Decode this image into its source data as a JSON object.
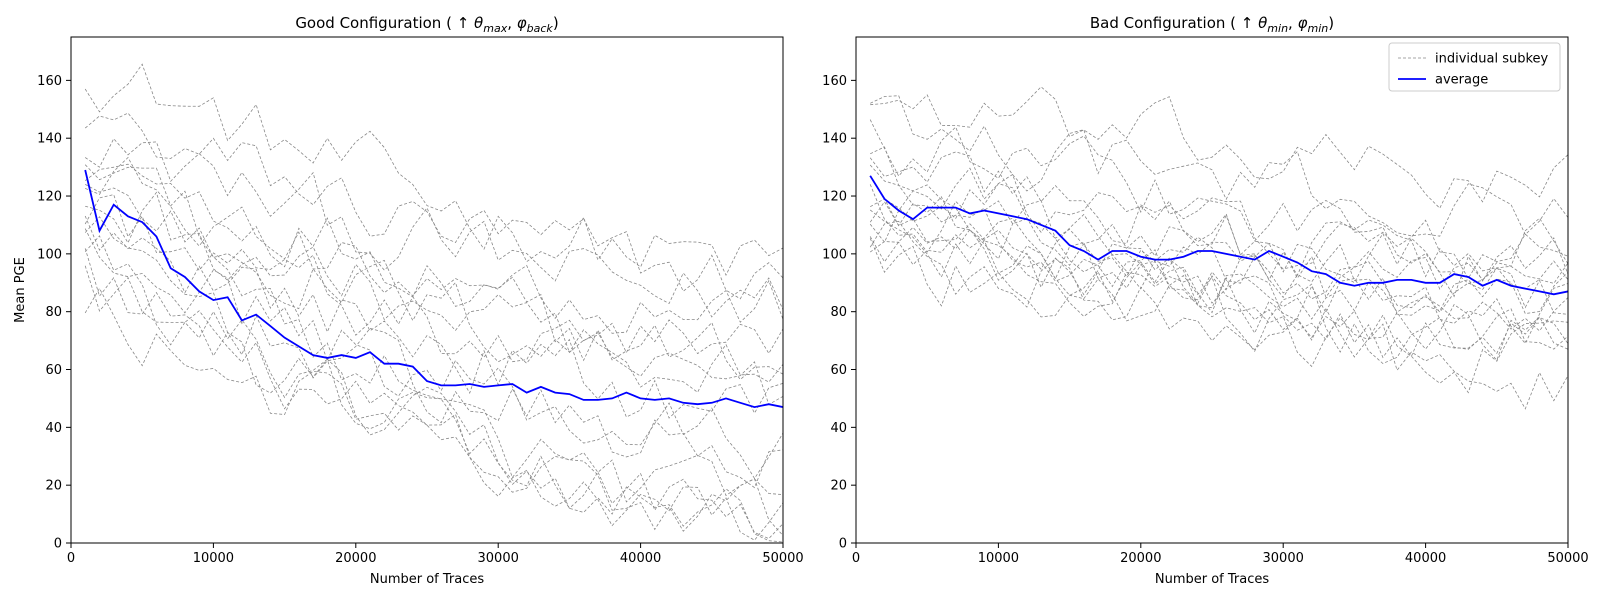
{
  "chart_data": [
    {
      "type": "line",
      "title": "Good Configuration ( ↑ θ_max, φ_back)",
      "title_parts": {
        "open": "Good Configuration ( ",
        "arrow": "↑ ",
        "theta": "θ",
        "theta_sub": "max",
        "comma": ", ",
        "phi": "φ",
        "phi_sub": "back",
        "close": ")"
      },
      "xlabel": "Number of Traces",
      "ylabel": "Mean PGE",
      "xlim": [
        0,
        50000
      ],
      "ylim": [
        0,
        175
      ],
      "xticks": [
        "0",
        "10000",
        "20000",
        "30000",
        "40000",
        "50000"
      ],
      "yticks": [
        "0",
        "20",
        "40",
        "60",
        "80",
        "100",
        "120",
        "140",
        "160"
      ],
      "grid": false,
      "legend": null,
      "series": [
        {
          "style": "average",
          "color": "#0000ff",
          "x": [
            1000,
            2000,
            3000,
            4000,
            5000,
            6000,
            7000,
            8000,
            9000,
            10000,
            11000,
            12000,
            13000,
            14000,
            15000,
            16000,
            17000,
            18000,
            19000,
            20000,
            21000,
            22000,
            23000,
            24000,
            25000,
            26000,
            27000,
            28000,
            29000,
            30000,
            31000,
            32000,
            33000,
            34000,
            35000,
            36000,
            37000,
            38000,
            39000,
            40000,
            41000,
            42000,
            43000,
            44000,
            45000,
            46000,
            47000,
            48000,
            49000,
            50000
          ],
          "values": [
            129,
            108,
            117,
            113,
            111,
            106,
            95,
            92,
            87,
            84,
            85,
            77,
            79,
            75,
            71,
            68,
            65,
            64,
            65,
            64,
            66,
            62,
            62,
            61,
            56,
            54.5,
            54.5,
            55,
            54,
            54.5,
            55,
            52,
            54,
            52,
            51.5,
            49.5,
            49.5,
            50,
            52,
            50,
            49.5,
            50,
            48.5,
            48,
            48.5,
            50,
            48.5,
            47,
            48,
            47
          ]
        }
      ],
      "individual_subkeys": {
        "count": 16,
        "color": "#888888",
        "x_start": 1000,
        "x_step": 1000,
        "start_values": [
          167,
          147,
          140,
          133,
          128,
          122,
          117,
          113,
          106,
          102,
          97,
          92,
          89,
          84,
          140,
          120
        ],
        "end_values": [
          95,
          91,
          84,
          80,
          63,
          60,
          52,
          47,
          33,
          30,
          12,
          9,
          8,
          7,
          2,
          62
        ],
        "noise": 13
      }
    },
    {
      "type": "line",
      "title": "Bad Configuration ( ↑ θ_min, φ_min)",
      "title_parts": {
        "open": "Bad Configuration ( ",
        "arrow": "↑ ",
        "theta": "θ",
        "theta_sub": "min",
        "comma": ", ",
        "phi": "φ",
        "phi_sub": "min",
        "close": ")"
      },
      "xlabel": "Number of Traces",
      "ylabel": "",
      "xlim": [
        0,
        50000
      ],
      "ylim": [
        0,
        175
      ],
      "xticks": [
        "0",
        "10000",
        "20000",
        "30000",
        "40000",
        "50000"
      ],
      "yticks": [
        "0",
        "20",
        "40",
        "60",
        "80",
        "100",
        "120",
        "140",
        "160"
      ],
      "grid": false,
      "legend": {
        "placement": "top-right",
        "entries": [
          {
            "label": "individual subkey",
            "style": "dashed",
            "color": "#888888"
          },
          {
            "label": "average",
            "style": "solid",
            "color": "#0000ff"
          }
        ]
      },
      "series": [
        {
          "style": "average",
          "color": "#0000ff",
          "x": [
            1000,
            2000,
            3000,
            4000,
            5000,
            6000,
            7000,
            8000,
            9000,
            10000,
            11000,
            12000,
            13000,
            14000,
            15000,
            16000,
            17000,
            18000,
            19000,
            20000,
            21000,
            22000,
            23000,
            24000,
            25000,
            26000,
            27000,
            28000,
            29000,
            30000,
            31000,
            32000,
            33000,
            34000,
            35000,
            36000,
            37000,
            38000,
            39000,
            40000,
            41000,
            42000,
            43000,
            44000,
            45000,
            46000,
            47000,
            48000,
            49000,
            50000
          ],
          "values": [
            127,
            119,
            115,
            112,
            116,
            116,
            116,
            114,
            115,
            114,
            113,
            112,
            110,
            108,
            103,
            101,
            98,
            101,
            101,
            99,
            98,
            98,
            99,
            101,
            101,
            100,
            99,
            98,
            101,
            99,
            97,
            94,
            93,
            90,
            89,
            90,
            90,
            91,
            91,
            90,
            90,
            93,
            92,
            89,
            91,
            89,
            88,
            87,
            86,
            87
          ]
        }
      ],
      "individual_subkeys": {
        "count": 16,
        "color": "#888888",
        "x_start": 1000,
        "x_step": 1000,
        "start_values": [
          155,
          147,
          140,
          133,
          128,
          124,
          120,
          117,
          113,
          110,
          106,
          101,
          98,
          117,
          130,
          108
        ],
        "end_values": [
          125,
          114,
          104,
          98,
          95,
          93,
          88,
          87,
          82,
          80,
          76,
          72,
          69,
          63,
          55,
          85
        ],
        "noise": 12
      }
    }
  ]
}
